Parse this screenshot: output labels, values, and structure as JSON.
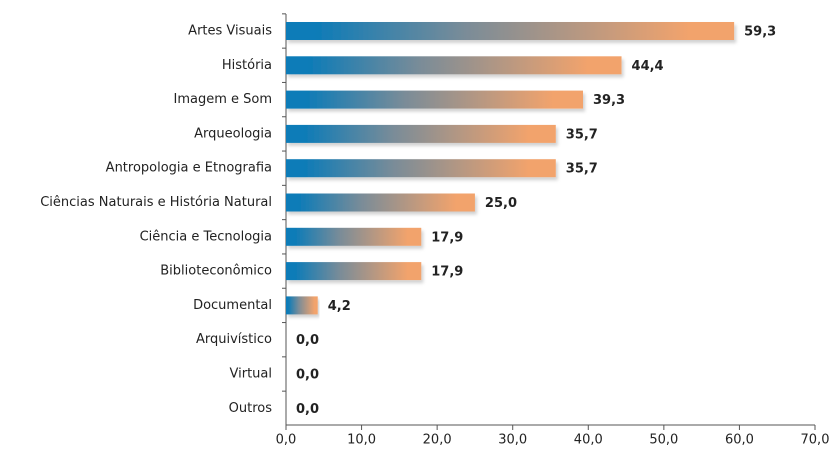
{
  "chart_data": {
    "type": "barh",
    "categories": [
      "Artes Visuais",
      "História",
      "Imagem e Som",
      "Arqueologia",
      "Antropologia e Etnografia",
      "Ciências Naturais e História Natural",
      "Ciência e Tecnologia",
      "Biblioteconômico",
      "Documental",
      "Arquivístico",
      "Virtual",
      "Outros"
    ],
    "values": [
      59.3,
      44.4,
      39.3,
      35.7,
      35.7,
      25.0,
      17.9,
      17.9,
      4.2,
      0.0,
      0.0,
      0.0
    ],
    "value_labels": [
      "59,3",
      "44,4",
      "39,3",
      "35,7",
      "35,7",
      "25,0",
      "17,9",
      "17,9",
      "4,2",
      "0,0",
      "0,0",
      "0,0"
    ],
    "colors": [
      "#0b7bb8",
      "#f2a36c"
    ],
    "xlim": [
      0,
      70
    ],
    "xticks": [
      {
        "value": 0,
        "label": "0,0"
      },
      {
        "value": 10,
        "label": "10,0"
      },
      {
        "value": 20,
        "label": "20,0"
      },
      {
        "value": 30,
        "label": "30,0"
      },
      {
        "value": 40,
        "label": "40,0"
      },
      {
        "value": 50,
        "label": "50,0"
      },
      {
        "value": 60,
        "label": "60,0"
      },
      {
        "value": 70,
        "label": "70,0"
      }
    ],
    "grid": false
  }
}
